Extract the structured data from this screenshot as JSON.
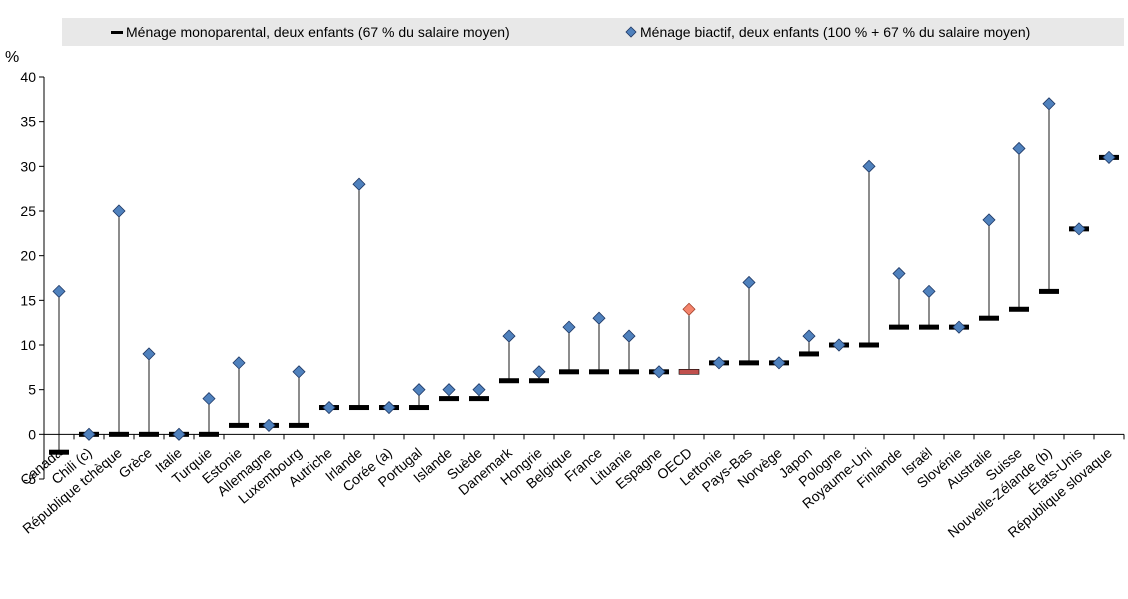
{
  "chart_data": {
    "type": "scatter",
    "ylabel": "%",
    "ylim": [
      -5,
      40
    ],
    "yticks": [
      -5,
      0,
      5,
      10,
      15,
      20,
      25,
      30,
      35,
      40
    ],
    "grid": false,
    "legend_position": "top",
    "highlight_category": "OECD",
    "colors": {
      "dash": "#000000",
      "diamond": "#4f81bd",
      "highlight_dash": "#c0504d",
      "highlight_diamond": "#f4846c",
      "legend_bg": "#e8e8e8",
      "axis": "#000000"
    },
    "categories": [
      "Canada",
      "Chili (c)",
      "République tchèque",
      "Grèce",
      "Italie",
      "Turquie",
      "Estonie",
      "Allemagne",
      "Luxembourg",
      "Autriche",
      "Irlande",
      "Corée (a)",
      "Portugal",
      "Islande",
      "Suède",
      "Danemark",
      "Hongrie",
      "Belgique",
      "France",
      "Lituanie",
      "Espagne",
      "OECD",
      "Lettonie",
      "Pays-Bas",
      "Norvège",
      "Japon",
      "Pologne",
      "Royaume-Uni",
      "Finlande",
      "Israël",
      "Slovénie",
      "Australie",
      "Suisse",
      "Nouvelle-Zélande (b)",
      "États-Unis",
      "République slovaque"
    ],
    "series": [
      {
        "name": "Ménage monoparental, deux enfants (67 % du salaire moyen)",
        "marker": "dash",
        "values": [
          -2,
          0,
          0,
          0,
          0,
          0,
          1,
          1,
          1,
          3,
          3,
          3,
          3,
          4,
          4,
          6,
          6,
          7,
          7,
          7,
          7,
          7,
          8,
          8,
          8,
          9,
          10,
          10,
          12,
          12,
          12,
          13,
          14,
          16,
          23,
          31
        ]
      },
      {
        "name": "Ménage biactif, deux enfants (100 % + 67 % du salaire moyen)",
        "marker": "diamond",
        "values": [
          16,
          0,
          25,
          9,
          0,
          4,
          8,
          1,
          7,
          3,
          28,
          3,
          5,
          5,
          5,
          11,
          7,
          12,
          13,
          11,
          7,
          14,
          8,
          17,
          8,
          11,
          10,
          30,
          18,
          16,
          12,
          24,
          32,
          37,
          23,
          31
        ]
      }
    ]
  }
}
